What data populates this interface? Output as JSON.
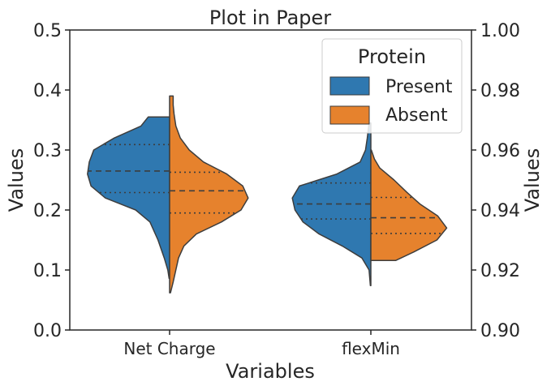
{
  "chart_data": {
    "type": "violin",
    "title": "Plot in Paper",
    "xlabel": "Variables",
    "ylabel": "Values",
    "ylabel_right": "Values",
    "categories": [
      "Net Charge",
      "flexMin"
    ],
    "ylim": [
      0.0,
      0.5
    ],
    "ylim_right": [
      0.9,
      1.0
    ],
    "yticks": [
      "0.0",
      "0.1",
      "0.2",
      "0.3",
      "0.4",
      "0.5"
    ],
    "yticks_right": [
      "0.90",
      "0.92",
      "0.94",
      "0.96",
      "0.98",
      "1.00"
    ],
    "grid": false,
    "legend": {
      "title": "Protein",
      "placement": "top-right"
    },
    "split": true,
    "inner": "quartile",
    "series": [
      {
        "name": "Present",
        "color": "#2f78b0",
        "violins": [
          {
            "category": "Net Charge",
            "min": 0.086,
            "max": 0.355,
            "q1": 0.229,
            "median": 0.265,
            "q3": 0.309,
            "profile": [
              [
                0.086,
                0.005
              ],
              [
                0.1,
                0.02
              ],
              [
                0.12,
                0.06
              ],
              [
                0.15,
                0.13
              ],
              [
                0.18,
                0.22
              ],
              [
                0.2,
                0.38
              ],
              [
                0.22,
                0.72
              ],
              [
                0.24,
                0.88
              ],
              [
                0.26,
                0.92
              ],
              [
                0.28,
                0.9
              ],
              [
                0.3,
                0.85
              ],
              [
                0.32,
                0.62
              ],
              [
                0.34,
                0.32
              ],
              [
                0.355,
                0.24
              ]
            ]
          },
          {
            "category": "flexMin",
            "min": 0.074,
            "max": 0.345,
            "q1": 0.185,
            "median": 0.21,
            "q3": 0.245,
            "profile": [
              [
                0.074,
                0.005
              ],
              [
                0.1,
                0.02
              ],
              [
                0.12,
                0.1
              ],
              [
                0.14,
                0.32
              ],
              [
                0.16,
                0.58
              ],
              [
                0.18,
                0.76
              ],
              [
                0.2,
                0.85
              ],
              [
                0.22,
                0.88
              ],
              [
                0.24,
                0.8
              ],
              [
                0.26,
                0.38
              ],
              [
                0.28,
                0.12
              ],
              [
                0.3,
                0.06
              ],
              [
                0.32,
                0.04
              ],
              [
                0.345,
                0.02
              ]
            ]
          }
        ]
      },
      {
        "name": "Absent",
        "color": "#e6822d",
        "violins": [
          {
            "category": "Net Charge",
            "min": 0.062,
            "max": 0.39,
            "q1": 0.195,
            "median": 0.232,
            "q3": 0.263,
            "profile": [
              [
                0.062,
                0.01
              ],
              [
                0.08,
                0.04
              ],
              [
                0.1,
                0.07
              ],
              [
                0.12,
                0.1
              ],
              [
                0.14,
                0.16
              ],
              [
                0.16,
                0.3
              ],
              [
                0.18,
                0.58
              ],
              [
                0.2,
                0.8
              ],
              [
                0.22,
                0.88
              ],
              [
                0.24,
                0.82
              ],
              [
                0.26,
                0.64
              ],
              [
                0.28,
                0.38
              ],
              [
                0.3,
                0.22
              ],
              [
                0.32,
                0.12
              ],
              [
                0.34,
                0.07
              ],
              [
                0.36,
                0.05
              ],
              [
                0.375,
                0.04
              ],
              [
                0.39,
                0.04
              ]
            ]
          },
          {
            "category": "flexMin",
            "min": 0.116,
            "max": 0.3,
            "q1": 0.161,
            "median": 0.187,
            "q3": 0.221,
            "profile": [
              [
                0.116,
                0.28
              ],
              [
                0.13,
                0.48
              ],
              [
                0.15,
                0.74
              ],
              [
                0.17,
                0.85
              ],
              [
                0.19,
                0.75
              ],
              [
                0.21,
                0.55
              ],
              [
                0.23,
                0.4
              ],
              [
                0.25,
                0.26
              ],
              [
                0.27,
                0.1
              ],
              [
                0.285,
                0.04
              ],
              [
                0.3,
                0.005
              ]
            ]
          }
        ]
      }
    ]
  }
}
